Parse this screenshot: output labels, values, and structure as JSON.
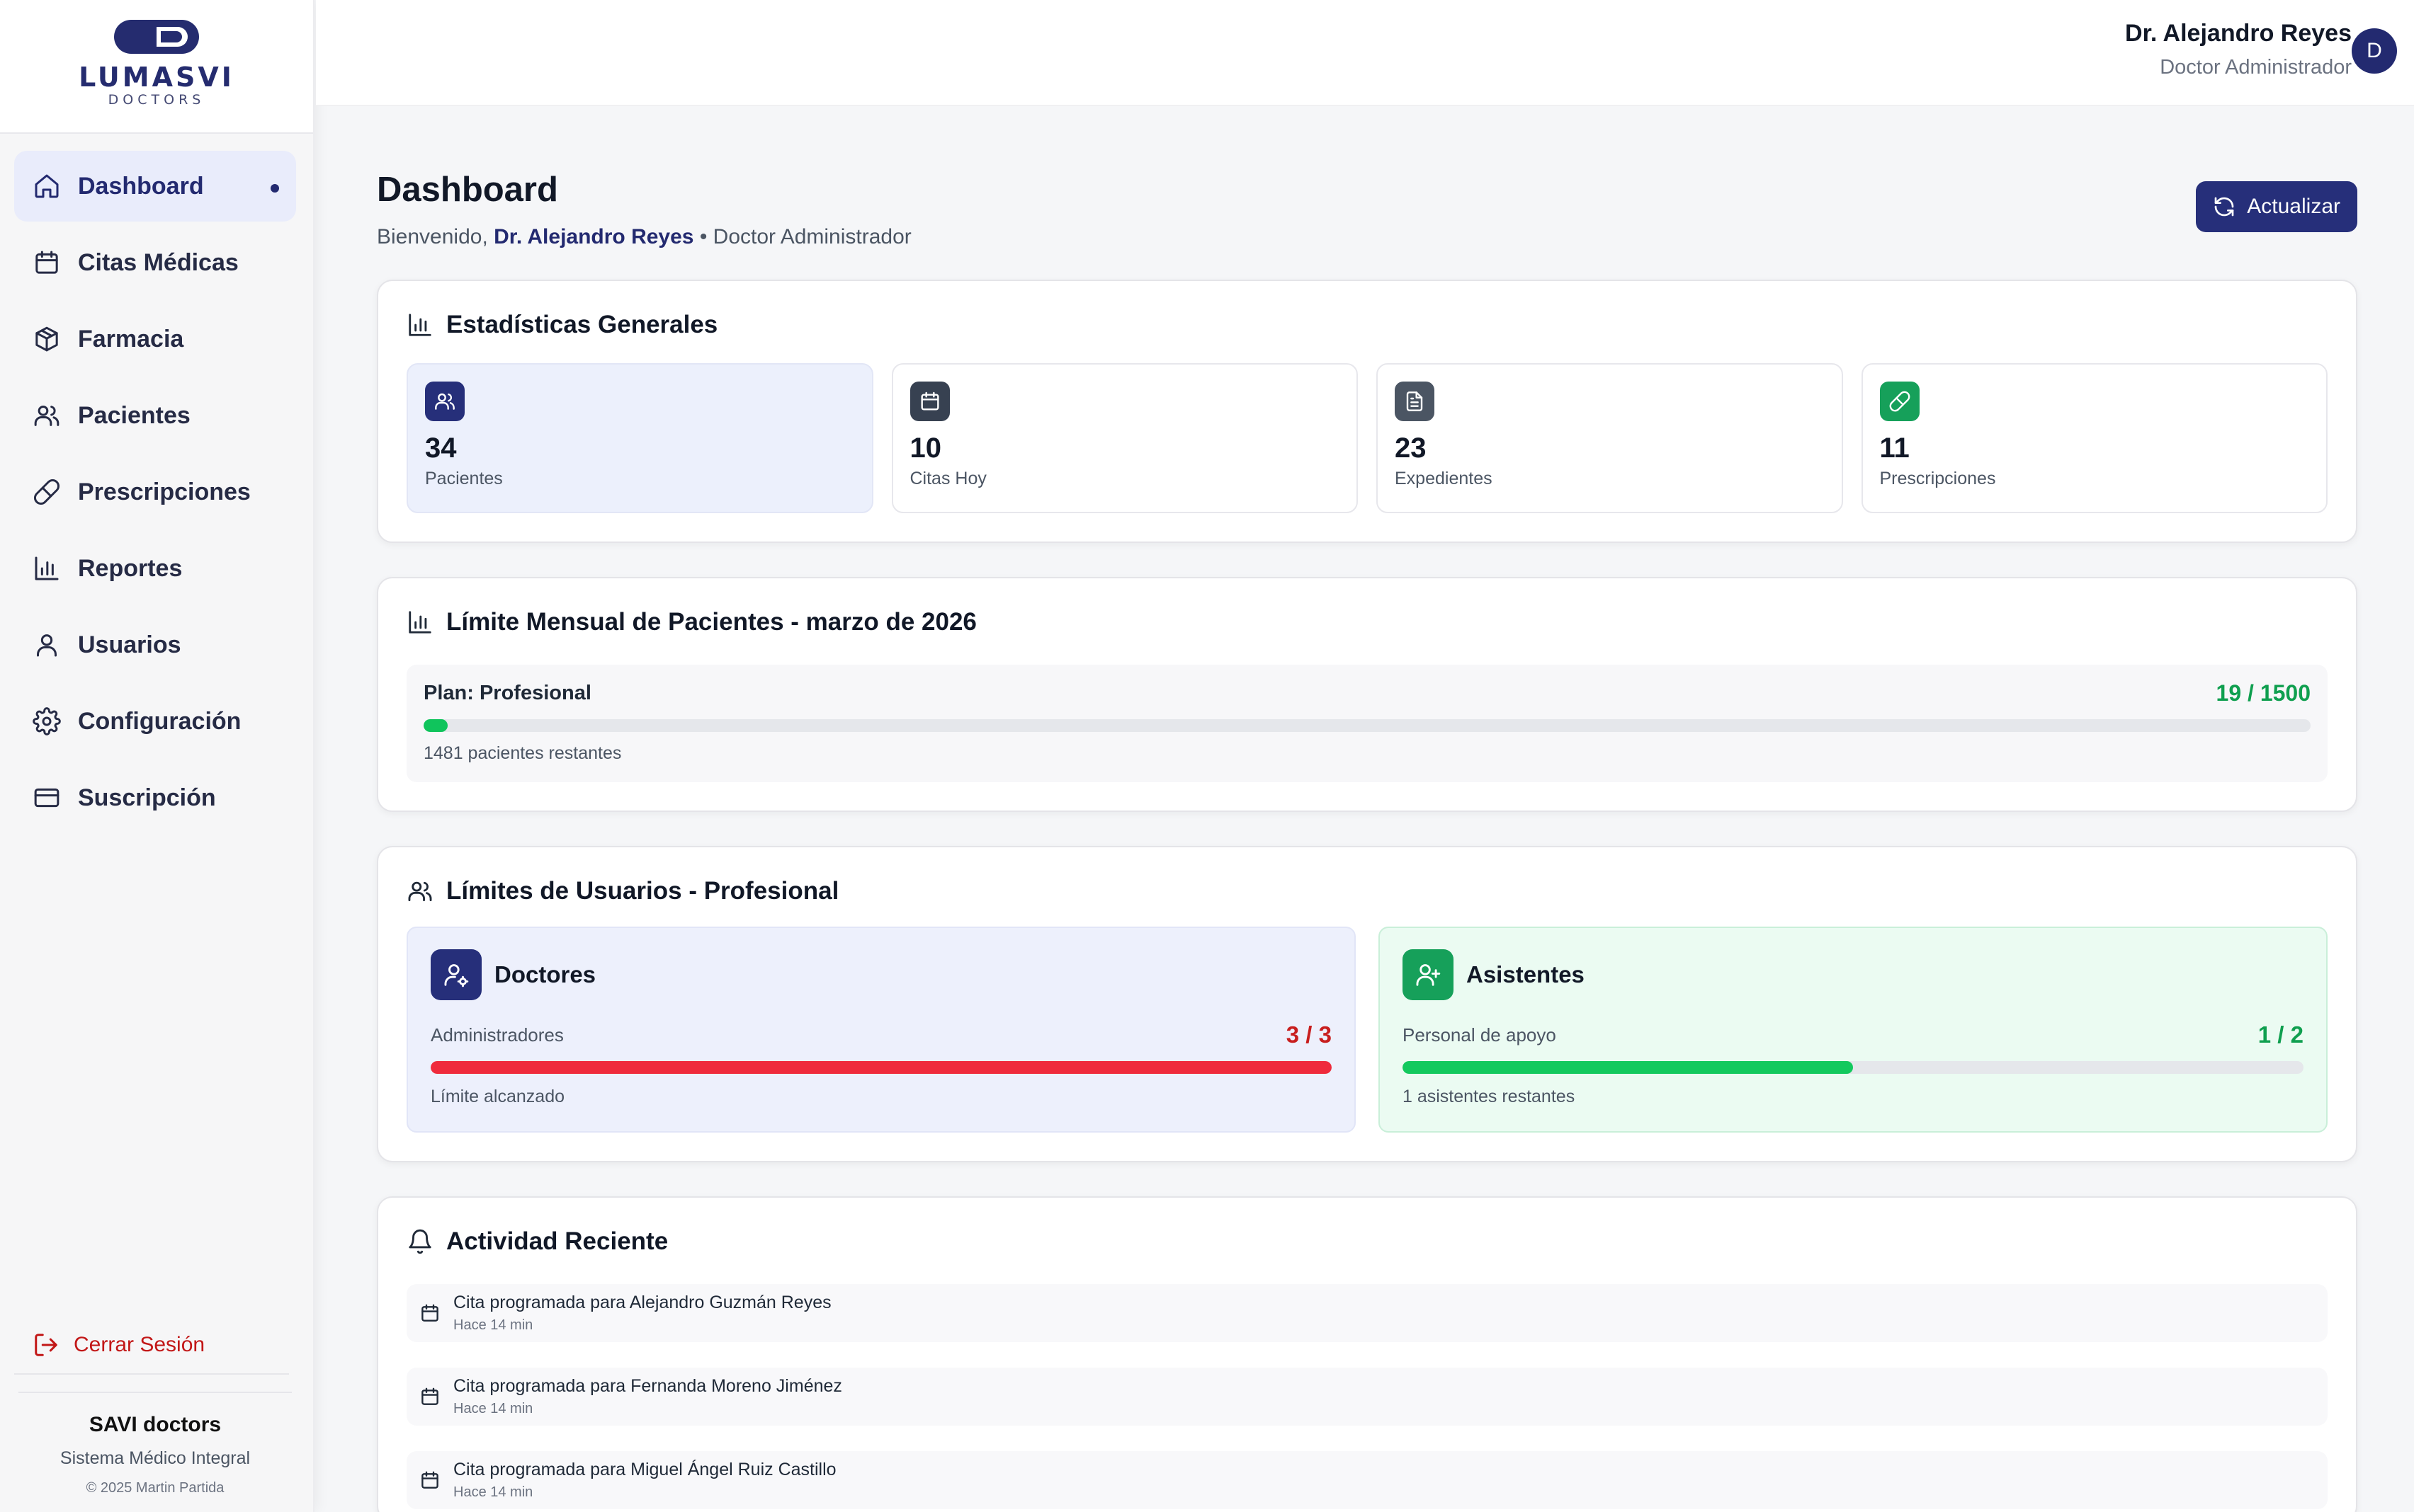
{
  "brand": {
    "name": "LUMASVI",
    "subtitle": "DOCTORS"
  },
  "sidebar": {
    "items": [
      {
        "label": "Dashboard",
        "icon": "home-icon",
        "active": true
      },
      {
        "label": "Citas Médicas",
        "icon": "calendar-icon"
      },
      {
        "label": "Farmacia",
        "icon": "package-icon"
      },
      {
        "label": "Pacientes",
        "icon": "users-icon"
      },
      {
        "label": "Prescripciones",
        "icon": "pill-icon"
      },
      {
        "label": "Reportes",
        "icon": "bar-chart-icon"
      },
      {
        "label": "Usuarios",
        "icon": "user-icon"
      },
      {
        "label": "Configuración",
        "icon": "gear-icon"
      },
      {
        "label": "Suscripción",
        "icon": "credit-card-icon"
      }
    ],
    "logout_label": "Cerrar Sesión",
    "footer": {
      "title": "SAVI doctors",
      "subtitle": "Sistema Médico Integral",
      "copyright": "© 2025 Martin Partida"
    }
  },
  "topbar": {
    "user_name": "Dr. Alejandro Reyes",
    "user_role": "Doctor Administrador",
    "avatar_letter": "D"
  },
  "header": {
    "title": "Dashboard",
    "welcome_prefix": "Bienvenido,",
    "welcome_name": "Dr. Alejandro Reyes",
    "welcome_suffix": "• Doctor Administrador",
    "refresh_label": "Actualizar"
  },
  "stats": {
    "title": "Estadísticas Generales",
    "items": [
      {
        "value": "34",
        "label": "Pacientes",
        "icon": "users-icon",
        "color": "#262f7a"
      },
      {
        "value": "10",
        "label": "Citas Hoy",
        "icon": "calendar-icon",
        "color": "#374151"
      },
      {
        "value": "23",
        "label": "Expedientes",
        "icon": "file-text-icon",
        "color": "#4b5563"
      },
      {
        "value": "11",
        "label": "Prescripciones",
        "icon": "pill-icon",
        "color": "#16a05a"
      }
    ]
  },
  "monthly_limit": {
    "title": "Límite Mensual de Pacientes - marzo de 2026",
    "plan": "Plan: Profesional",
    "count": "19 / 1500",
    "progress": 0.0127,
    "remaining": "1481 pacientes restantes",
    "color": "#10c45c"
  },
  "user_limits": {
    "title": "Límites de Usuarios - Profesional",
    "doctors": {
      "title": "Doctores",
      "subtitle": "Administradores",
      "count": "3 / 3",
      "progress": 1.0,
      "note": "Límite alcanzado",
      "color": "#ef2b3c",
      "count_color": "#c81e1e"
    },
    "assistants": {
      "title": "Asistentes",
      "subtitle": "Personal de apoyo",
      "count": "1 / 2",
      "progress": 0.5,
      "note": "1 asistentes restantes",
      "color": "#13c95e",
      "count_color": "#0f9f4f"
    }
  },
  "activity": {
    "title": "Actividad Reciente",
    "items": [
      {
        "text": "Cita programada para Alejandro Guzmán Reyes",
        "time": "Hace 14 min"
      },
      {
        "text": "Cita programada para Fernanda Moreno Jiménez",
        "time": "Hace 14 min"
      },
      {
        "text": "Cita programada para Miguel Ángel Ruiz Castillo",
        "time": "Hace 14 min"
      }
    ]
  }
}
